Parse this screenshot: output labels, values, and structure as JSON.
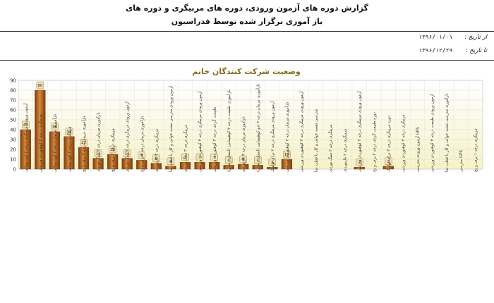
{
  "report": {
    "title_line1": "گزارش دوره های آزمون ورودی، دوره های مربیگری و دوره های",
    "title_line2": "باز آموزی برگزار شده توسط فدراسیون",
    "from_label": "از تاریخ :",
    "from_value": "۱۳۹۶/۰۱/۰۱",
    "to_label": "تا تاریخ :",
    "to_value": "۱۳۹۶/۱۲/۲۹"
  },
  "colors": {
    "bar": "#b05a14",
    "bar_dark": "#7a3a08",
    "bar_light": "#d98a3c",
    "label_bg": "#efe2b8",
    "plot_bg_top": "#ffffff",
    "plot_bg_bottom": "#f6f2c8",
    "title": "#8a6a1c"
  },
  "chart_data": {
    "type": "bar",
    "title": "وضعیت شرکت کنندگان خانم",
    "xlabel": "",
    "ylabel": "",
    "ylim": [
      0,
      90
    ],
    "yticks": [
      0,
      10,
      20,
      30,
      40,
      50,
      60,
      70,
      80,
      90
    ],
    "grid": true,
    "categories": [
      "آزمون ورودی مربیگری درجه ۳ کوه پیمایی",
      "مربیگری درجه ۳ کوهنوردی ورزشی",
      "بازآموزی مربیان درجه ۳ کوه پیمایی",
      "مربیگری درجه ۳ کوه پیمایی",
      "بازآموزی مربیان درجه ۳ برف و یخ",
      "بازآموزی مربیان درجه ۳ سنگ نوردی",
      "مربیگری درجه ۳ برف و یخ",
      "آزمون ورودی مربیگری درجه ۳ سنگ نوردی",
      "بازآموزی مربیان درجه ۲ برف و یخ",
      "مربیگری درجه ۳ غارنوردی",
      "آزمون ورودی مدرسی نقشه خوانی و کار با قطب نما",
      "مربیگری درجه ۳ سنگ نوردی",
      "آزمون ورودی مربیگری درجه ۳ کوهنوردی ورزشی",
      "طبیعت گردی درجه ۳ کوهنوردی ورزشی",
      "بازآموزی طبیعت درجه ۳ کوهپیمایی (استان زنجان)",
      "بازآموزی مربیان درجه ۳ غارنوردی",
      "بازآموزی مربیان درجه ۳ (دو کوهپیمایی (استان زنجان)",
      "آزمون ورودی مربیگری درجه ۳ درای تولینگ",
      "بازآموزی مربیان درجه ۳ کوهنوردی ورزشی",
      "آزمون ورودی مربیگری درجه ۳ کوهنوردی ورزشی",
      "مدرسی نقشه خوانی و کار با قطب نما",
      "مربیگری درجه ۳ سنگ نوردی",
      "مربیگری درجه ۳ غارنوردی",
      "آزمون ورودی مربیگری درجه ۳ کوهنوردی ورزشی",
      "دوره طبیعت گردی درجه ۳ برف و یخ",
      "دوره مربیگری درجه ۳ درای تولینگ",
      "مربیگری درجه ۳ کوهنوردی ورزشی",
      "GPS آزمون ورودی مدرسی",
      "آزمون ورودی طبیعت درجه ۳ کوهنوردی ورزشی",
      "بازآموزی مدرسی نقشه خوانی و کار با قطب نما",
      "GPS مدرسی",
      "مربیگری درجه ۱ برف و یخ"
    ],
    "values": [
      40,
      80,
      38,
      33,
      22,
      11,
      15,
      11,
      9,
      6,
      3,
      7,
      7,
      7,
      4,
      5,
      4,
      2,
      10,
      0,
      0,
      0,
      0,
      2,
      0,
      3,
      0,
      0,
      0,
      0,
      0,
      0
    ],
    "data_labels": [
      "40",
      "80",
      "38",
      "33",
      "22",
      "11",
      "15",
      "11",
      "9",
      "6",
      "3",
      "7",
      "7",
      "7",
      "4",
      "5",
      "4",
      "2",
      "10",
      "",
      "",
      "",
      "",
      "2",
      "",
      "3",
      "",
      "",
      "",
      "",
      "",
      ""
    ]
  }
}
